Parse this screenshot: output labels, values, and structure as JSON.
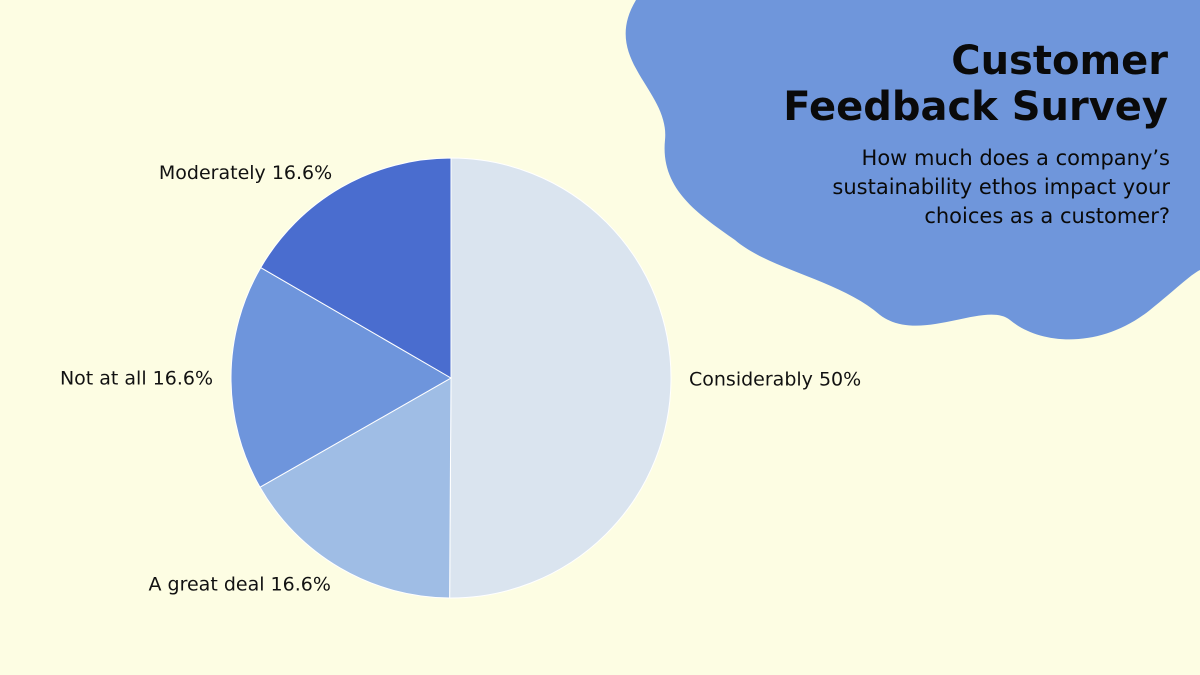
{
  "colors": {
    "background": "#fdfde3",
    "blob": "#6f96db"
  },
  "header": {
    "title_lines": [
      "Customer",
      "Feedback Survey"
    ],
    "subtitle_lines": [
      "How much does a company’s",
      "sustainability ethos impact your",
      "choices as a customer?"
    ]
  },
  "chart_data": {
    "type": "pie",
    "title": "Customer Feedback Survey",
    "subtitle": "How much does a company’s sustainability ethos impact your choices as a customer?",
    "slices": [
      {
        "label": "Considerably",
        "value": 50,
        "display": "Considerably 50%",
        "color": "#dae4ef"
      },
      {
        "label": "A great deal",
        "value": 16.6,
        "display": "A great deal 16.6%",
        "color": "#9fbde5"
      },
      {
        "label": "Not at all",
        "value": 16.6,
        "display": "Not at all 16.6%",
        "color": "#6e95dc"
      },
      {
        "label": "Moderately",
        "value": 16.6,
        "display": "Moderately 16.6%",
        "color": "#4a6dcf"
      }
    ]
  }
}
